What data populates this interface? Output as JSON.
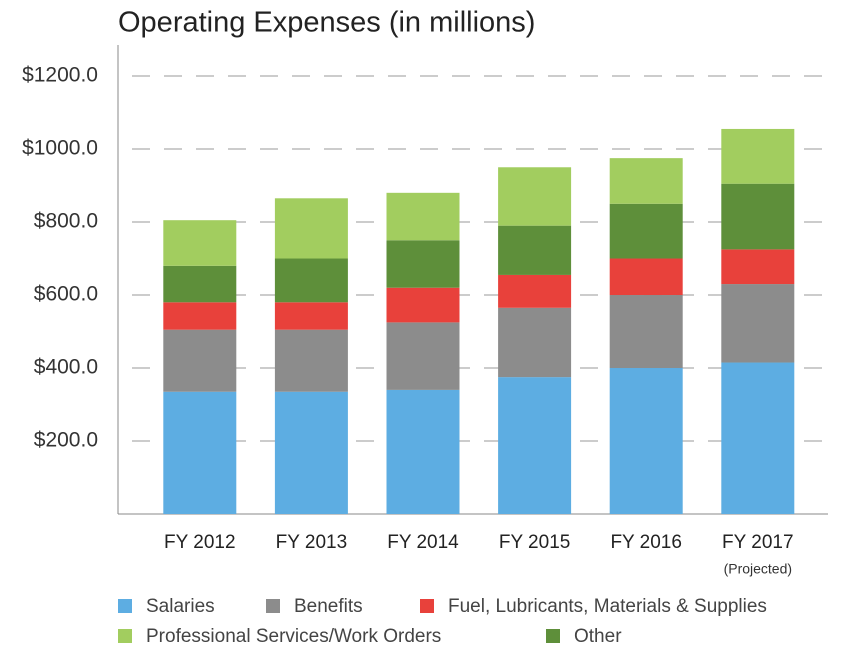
{
  "chart_data": {
    "type": "stacked_bar",
    "title": "Operating Expenses (in millions)",
    "categories": [
      "FY 2012",
      "FY 2013",
      "FY 2014",
      "FY 2015",
      "FY 2016",
      "FY 2017"
    ],
    "annotation": "(Projected)",
    "series": [
      {
        "name": "Salaries",
        "color": "#5dade2",
        "values": [
          335,
          335,
          340,
          375,
          400,
          415
        ]
      },
      {
        "name": "Benefits",
        "color": "#8c8c8c",
        "values": [
          170,
          170,
          185,
          190,
          200,
          215
        ]
      },
      {
        "name": "Fuel, Lubricants, Materials & Supplies",
        "color": "#e8413b",
        "values": [
          75,
          75,
          95,
          90,
          100,
          95
        ]
      },
      {
        "name": "Other",
        "color": "#5e8f3a",
        "values": [
          100,
          120,
          130,
          135,
          150,
          180
        ]
      },
      {
        "name": "Professional Services/Work Orders",
        "color": "#a2cd5f",
        "values": [
          125,
          165,
          130,
          160,
          125,
          150
        ]
      }
    ],
    "ylim": [
      0,
      1285
    ],
    "yticks": [
      {
        "value": 200,
        "label": "$200.0"
      },
      {
        "value": 400,
        "label": "$400.0"
      },
      {
        "value": 600,
        "label": "$600.0"
      },
      {
        "value": 800,
        "label": "$800.0"
      },
      {
        "value": 1000,
        "label": "$1000.0"
      },
      {
        "value": 1200,
        "label": "$1200.0"
      }
    ],
    "grid": true
  }
}
